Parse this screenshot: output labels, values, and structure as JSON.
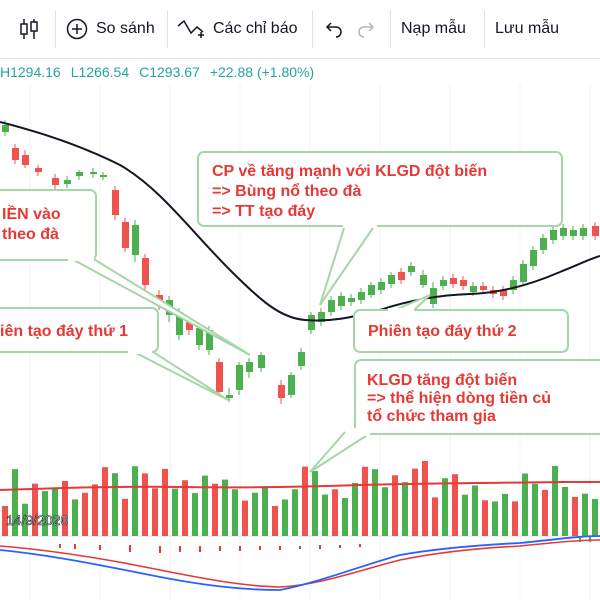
{
  "toolbar": {
    "compare_label": "So sánh",
    "indicators_label": "Các chỉ báo",
    "load_template_label": "Nạp mẫu",
    "save_template_label": "Lưu mẫu",
    "icons": [
      "candlestick-icon",
      "plus-circle-icon",
      "indicator-wave-icon",
      "undo-icon",
      "redo-icon"
    ]
  },
  "ohlc": {
    "high": "H1294.16",
    "low": "L1266.54",
    "close": "C1293.67",
    "change": "+22.88 (+1.80%)",
    "color": "#26a69a"
  },
  "date_label": "14/9/2020",
  "annotations": [
    {
      "lines": [
        "CP về tăng mạnh với KLGD đột biến",
        "=> Bùng nổ theo đà",
        "=> TT tạo đáy"
      ]
    },
    {
      "lines": [
        "IỀN vào",
        "theo đà"
      ]
    },
    {
      "lines": [
        "iên tạo đáy thứ 1"
      ]
    },
    {
      "lines": [
        "Phiên tạo đáy thứ 2"
      ]
    },
    {
      "lines": [
        "KLGD tăng đột biến",
        "=> thể hiện dòng tiền củ",
        "tổ chức tham gia"
      ]
    }
  ],
  "colors": {
    "up": "#26a69a",
    "bull_candle": "#4caf50",
    "bear_candle": "#ef5350",
    "ma_line": "#131722",
    "volume_ma": "#e53935",
    "macd_blue": "#2962ff",
    "macd_red": "#e53935",
    "callout_text": "#e53935",
    "callout_border": "#a5d6a7"
  }
}
